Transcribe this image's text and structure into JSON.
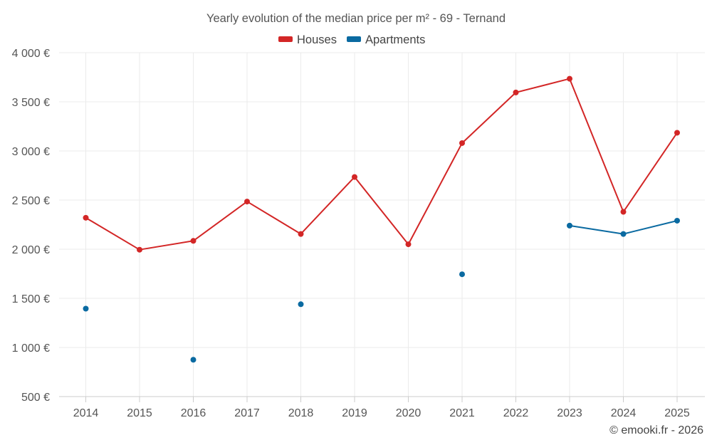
{
  "chart_data": {
    "type": "line",
    "title": "Yearly evolution of the median price per m² - 69 - Ternand",
    "xlabel": "",
    "ylabel": "",
    "categories": [
      "2014",
      "2015",
      "2016",
      "2017",
      "2018",
      "2019",
      "2020",
      "2021",
      "2022",
      "2023",
      "2024",
      "2025"
    ],
    "ylim": [
      500,
      4000
    ],
    "y_ticks": [
      500,
      1000,
      1500,
      2000,
      2500,
      3000,
      3500,
      4000
    ],
    "y_tick_labels": [
      "500 €",
      "1 000 €",
      "1 500 €",
      "2 000 €",
      "2 500 €",
      "3 000 €",
      "3 500 €",
      "4 000 €"
    ],
    "grid": true,
    "legend_position": "top-center",
    "series": [
      {
        "name": "Houses",
        "color": "#d32626",
        "values": [
          2320,
          1995,
          2085,
          2485,
          2155,
          2735,
          2050,
          3080,
          3595,
          3735,
          2380,
          3185
        ]
      },
      {
        "name": "Apartments",
        "color": "#0a6aa1",
        "values": [
          1395,
          null,
          875,
          null,
          1440,
          null,
          null,
          1745,
          null,
          2240,
          2155,
          2290
        ]
      }
    ]
  },
  "credit": "© emooki.fr - 2026"
}
